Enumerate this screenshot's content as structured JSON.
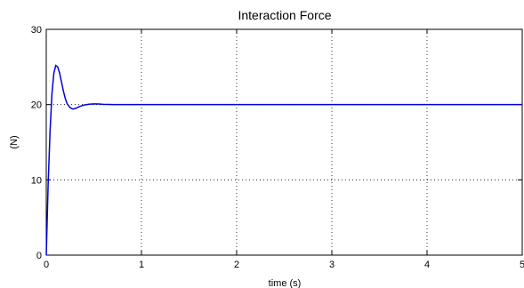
{
  "chart_data": {
    "type": "line",
    "title": "Interaction Force",
    "xlabel": "time (s)",
    "ylabel": "(N)",
    "xlim": [
      0,
      5
    ],
    "ylim": [
      0,
      30
    ],
    "grid": true,
    "x_ticks": [
      0,
      1,
      2,
      3,
      4,
      5
    ],
    "y_ticks": [
      0,
      10,
      20,
      30
    ],
    "series": [
      {
        "color": "#0000dd",
        "x": [
          0,
          0.02,
          0.04,
          0.06,
          0.08,
          0.1,
          0.12,
          0.14,
          0.16,
          0.18,
          0.2,
          0.22,
          0.25,
          0.28,
          0.31,
          0.35,
          0.4,
          0.45,
          0.5,
          0.55,
          0.6,
          0.7,
          0.8,
          1.0,
          1.5,
          2.0,
          2.5,
          3.0,
          3.5,
          4.0,
          4.5,
          5.0
        ],
        "y": [
          0,
          9.5,
          16.5,
          21.5,
          24.2,
          25.2,
          25.0,
          24.2,
          23.0,
          21.8,
          20.8,
          20.1,
          19.6,
          19.4,
          19.5,
          19.75,
          19.95,
          20.05,
          20.1,
          20.08,
          20.03,
          20.0,
          20.0,
          20.0,
          20.0,
          20.0,
          20.0,
          20.0,
          20.0,
          20.0,
          20.0,
          20.0
        ]
      }
    ]
  }
}
